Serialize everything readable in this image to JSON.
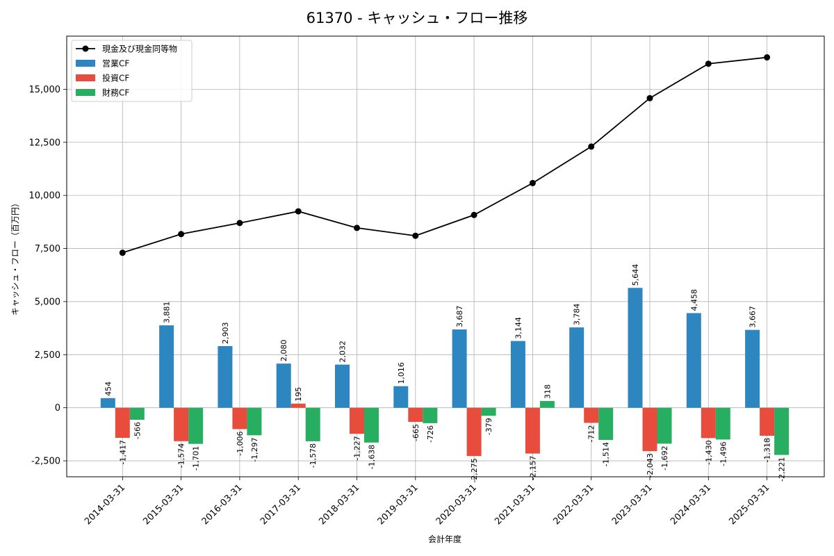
{
  "chart_data": {
    "type": "bar",
    "title": "61370 - キャッシュ・フロー推移",
    "xlabel": "会計年度",
    "ylabel": "キャッシュ・フロー（百万円）",
    "categories": [
      "2014-03-31",
      "2015-03-31",
      "2016-03-31",
      "2017-03-31",
      "2018-03-31",
      "2019-03-31",
      "2020-03-31",
      "2021-03-31",
      "2022-03-31",
      "2023-03-31",
      "2024-03-31",
      "2025-03-31"
    ],
    "ylim": [
      -3250,
      17500
    ],
    "yticks": [
      -2500,
      0,
      2500,
      5000,
      7500,
      10000,
      12500,
      15000
    ],
    "ytick_labels": [
      "-2,500",
      "0",
      "2,500",
      "5,000",
      "7,500",
      "10,000",
      "12,500",
      "15,000"
    ],
    "grid": true,
    "legend_position": "top-left",
    "series": [
      {
        "name": "営業CF",
        "kind": "bar",
        "color": "#2e86c1",
        "values": [
          454,
          3881,
          2903,
          2080,
          2032,
          1016,
          3687,
          3144,
          3784,
          5644,
          4458,
          3667
        ],
        "labels": [
          "454",
          "3,881",
          "2,903",
          "2,080",
          "2,032",
          "1,016",
          "3,687",
          "3,144",
          "3,784",
          "5,644",
          "4,458",
          "3,667"
        ]
      },
      {
        "name": "投資CF",
        "kind": "bar",
        "color": "#e74c3c",
        "values": [
          -1417,
          -1574,
          -1006,
          195,
          -1227,
          -665,
          -2275,
          -2157,
          -712,
          -2043,
          -1430,
          -1318
        ],
        "labels": [
          "-1,417",
          "-1,574",
          "-1,006",
          "195",
          "-1,227",
          "-665",
          "-2,275",
          "-2,157",
          "-712",
          "-2,043",
          "-1,430",
          "-1,318"
        ]
      },
      {
        "name": "財務CF",
        "kind": "bar",
        "color": "#27ae60",
        "values": [
          -566,
          -1701,
          -1297,
          -1578,
          -1638,
          -726,
          -379,
          318,
          -1514,
          -1692,
          -1496,
          -2221
        ],
        "labels": [
          "-566",
          "-1,701",
          "-1,297",
          "-1,578",
          "-1,638",
          "-726",
          "-379",
          "318",
          "-1,514",
          "-1,692",
          "-1,496",
          "-2,221"
        ]
      },
      {
        "name": "現金及び現金同等物",
        "kind": "line",
        "color": "#000000",
        "values": [
          7300,
          8180,
          8700,
          9250,
          8470,
          8100,
          9080,
          10580,
          12300,
          14580,
          16200,
          16500
        ]
      }
    ]
  }
}
